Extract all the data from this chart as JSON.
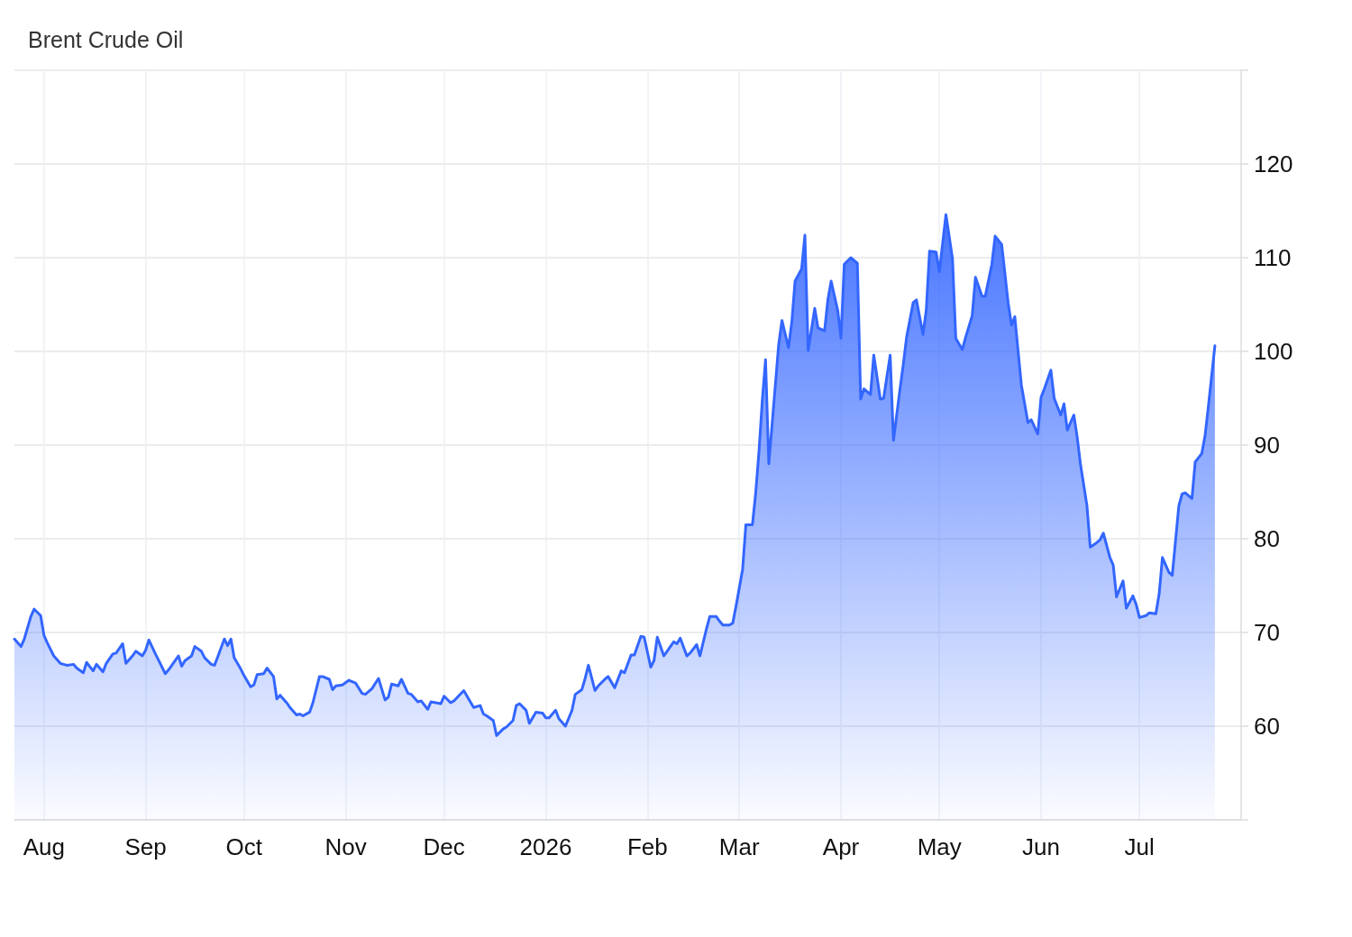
{
  "chart_data": {
    "type": "area",
    "title": "Brent Crude Oil",
    "x": [
      "2025-07-23",
      "2025-07-25",
      "2025-07-26",
      "2025-07-28",
      "2025-07-29",
      "2025-07-31",
      "2025-08-01",
      "2025-08-02",
      "2025-08-04",
      "2025-08-06",
      "2025-08-08",
      "2025-08-10",
      "2025-08-11",
      "2025-08-13",
      "2025-08-14",
      "2025-08-16",
      "2025-08-17",
      "2025-08-19",
      "2025-08-20",
      "2025-08-22",
      "2025-08-23",
      "2025-08-25",
      "2025-08-26",
      "2025-08-28",
      "2025-08-29",
      "2025-08-31",
      "2025-09-01",
      "2025-09-02",
      "2025-09-04",
      "2025-09-05",
      "2025-09-07",
      "2025-09-08",
      "2025-09-09",
      "2025-09-11",
      "2025-09-12",
      "2025-09-13",
      "2025-09-15",
      "2025-09-16",
      "2025-09-18",
      "2025-09-19",
      "2025-09-21",
      "2025-09-22",
      "2025-09-23",
      "2025-09-25",
      "2025-09-26",
      "2025-09-27",
      "2025-09-28",
      "2025-09-30",
      "2025-10-01",
      "2025-10-03",
      "2025-10-04",
      "2025-10-05",
      "2025-10-07",
      "2025-10-08",
      "2025-10-10",
      "2025-10-11",
      "2025-10-12",
      "2025-10-14",
      "2025-10-15",
      "2025-10-17",
      "2025-10-18",
      "2025-10-19",
      "2025-10-21",
      "2025-10-22",
      "2025-10-24",
      "2025-10-25",
      "2025-10-27",
      "2025-10-28",
      "2025-10-29",
      "2025-10-31",
      "2025-11-02",
      "2025-11-04",
      "2025-11-06",
      "2025-11-07",
      "2025-11-09",
      "2025-11-11",
      "2025-11-13",
      "2025-11-14",
      "2025-11-15",
      "2025-11-17",
      "2025-11-18",
      "2025-11-20",
      "2025-11-21",
      "2025-11-23",
      "2025-11-24",
      "2025-11-26",
      "2025-11-27",
      "2025-11-30",
      "2025-12-01",
      "2025-12-03",
      "2025-12-04",
      "2025-12-07",
      "2025-12-09",
      "2025-12-10",
      "2025-12-12",
      "2025-12-13",
      "2025-12-14",
      "2025-12-16",
      "2025-12-17",
      "2025-12-19",
      "2025-12-20",
      "2025-12-22",
      "2025-12-23",
      "2025-12-24",
      "2025-12-26",
      "2025-12-27",
      "2025-12-29",
      "2025-12-31",
      "2026-01-01",
      "2026-01-02",
      "2026-01-04",
      "2026-01-05",
      "2026-01-07",
      "2026-01-09",
      "2026-01-10",
      "2026-01-12",
      "2026-01-13",
      "2026-01-14",
      "2026-01-16",
      "2026-01-17",
      "2026-01-19",
      "2026-01-20",
      "2026-01-22",
      "2026-01-24",
      "2026-01-25",
      "2026-01-27",
      "2026-01-28",
      "2026-01-30",
      "2026-01-31",
      "2026-02-02",
      "2026-02-03",
      "2026-02-04",
      "2026-02-06",
      "2026-02-07",
      "2026-02-09",
      "2026-02-10",
      "2026-02-11",
      "2026-02-13",
      "2026-02-14",
      "2026-02-16",
      "2026-02-17",
      "2026-02-19",
      "2026-02-20",
      "2026-02-22",
      "2026-02-23",
      "2026-02-24",
      "2026-02-26",
      "2026-02-27",
      "2026-02-28",
      "2026-03-02",
      "2026-03-03",
      "2026-03-05",
      "2026-03-06",
      "2026-03-07",
      "2026-03-08",
      "2026-03-09",
      "2026-03-10",
      "2026-03-11",
      "2026-03-13",
      "2026-03-14",
      "2026-03-16",
      "2026-03-17",
      "2026-03-18",
      "2026-03-20",
      "2026-03-21",
      "2026-03-22",
      "2026-03-24",
      "2026-03-25",
      "2026-03-27",
      "2026-03-28",
      "2026-03-29",
      "2026-03-31",
      "2026-04-01",
      "2026-04-02",
      "2026-04-04",
      "2026-04-06",
      "2026-04-07",
      "2026-04-08",
      "2026-04-10",
      "2026-04-11",
      "2026-04-13",
      "2026-04-14",
      "2026-04-16",
      "2026-04-17",
      "2026-04-19",
      "2026-04-20",
      "2026-04-21",
      "2026-04-23",
      "2026-04-24",
      "2026-04-26",
      "2026-04-27",
      "2026-04-28",
      "2026-04-30",
      "2026-05-01",
      "2026-05-03",
      "2026-05-05",
      "2026-05-06",
      "2026-05-08",
      "2026-05-09",
      "2026-05-11",
      "2026-05-12",
      "2026-05-14",
      "2026-05-15",
      "2026-05-17",
      "2026-05-18",
      "2026-05-20",
      "2026-05-22",
      "2026-05-23",
      "2026-05-24",
      "2026-05-26",
      "2026-05-28",
      "2026-05-29",
      "2026-05-31",
      "2026-06-01",
      "2026-06-02",
      "2026-06-04",
      "2026-06-05",
      "2026-06-07",
      "2026-06-08",
      "2026-06-09",
      "2026-06-11",
      "2026-06-12",
      "2026-06-13",
      "2026-06-15",
      "2026-06-16",
      "2026-06-18",
      "2026-06-19",
      "2026-06-20",
      "2026-06-22",
      "2026-06-23",
      "2026-06-24",
      "2026-06-26",
      "2026-06-27",
      "2026-06-29",
      "2026-06-30",
      "2026-07-01",
      "2026-07-03",
      "2026-07-04",
      "2026-07-06",
      "2026-07-07",
      "2026-07-08",
      "2026-07-10",
      "2026-07-11",
      "2026-07-13",
      "2026-07-14",
      "2026-07-15",
      "2026-07-17",
      "2026-07-18",
      "2026-07-20",
      "2026-07-21",
      "2026-07-22",
      "2026-07-24"
    ],
    "values": [
      69.3,
      68.5,
      69.3,
      71.7,
      72.5,
      71.8,
      69.7,
      68.9,
      67.5,
      66.7,
      66.5,
      66.6,
      66.2,
      65.7,
      66.8,
      65.9,
      66.6,
      65.8,
      66.7,
      67.7,
      67.8,
      68.8,
      66.7,
      67.5,
      68.0,
      67.5,
      68.1,
      69.2,
      67.7,
      67.0,
      65.6,
      66.0,
      66.5,
      67.5,
      66.4,
      67.0,
      67.5,
      68.5,
      68.0,
      67.3,
      66.6,
      66.5,
      67.4,
      69.3,
      68.6,
      69.3,
      67.3,
      66.1,
      65.4,
      64.2,
      64.4,
      65.5,
      65.6,
      66.2,
      65.3,
      62.9,
      63.3,
      62.5,
      62.0,
      61.2,
      61.3,
      61.1,
      61.5,
      62.5,
      65.3,
      65.3,
      65.0,
      63.9,
      64.3,
      64.4,
      64.9,
      64.6,
      63.5,
      63.4,
      64.0,
      65.1,
      62.8,
      63.1,
      64.5,
      64.3,
      65.0,
      63.5,
      63.4,
      62.6,
      62.7,
      61.8,
      62.6,
      62.4,
      63.2,
      62.5,
      62.7,
      63.8,
      62.6,
      62.0,
      62.2,
      61.3,
      61.1,
      60.6,
      59.0,
      59.7,
      59.9,
      60.6,
      62.2,
      62.4,
      61.7,
      60.3,
      61.5,
      61.4,
      60.9,
      60.9,
      61.7,
      60.8,
      60.0,
      61.7,
      63.4,
      63.9,
      65.1,
      66.5,
      63.8,
      64.3,
      65.0,
      65.3,
      64.1,
      65.9,
      65.7,
      67.6,
      67.6,
      69.6,
      69.5,
      66.3,
      67.0,
      69.5,
      67.5,
      68.0,
      69.0,
      68.8,
      69.4,
      67.5,
      67.8,
      68.7,
      67.5,
      70.4,
      71.7,
      71.7,
      71.2,
      70.8,
      70.8,
      71.0,
      72.8,
      76.7,
      81.5,
      81.5,
      84.9,
      89.3,
      94.7,
      99.1,
      88.0,
      92.2,
      100.7,
      103.3,
      100.4,
      103.1,
      107.5,
      108.8,
      112.4,
      100.1,
      104.6,
      102.5,
      102.2,
      105.5,
      107.5,
      104.4,
      101.4,
      109.3,
      110.0,
      109.4,
      94.9,
      96.0,
      95.4,
      99.6,
      94.9,
      95.0,
      99.6,
      90.5,
      96.0,
      98.6,
      101.5,
      105.2,
      105.5,
      101.8,
      104.4,
      110.7,
      110.6,
      108.5,
      114.6,
      109.9,
      101.4,
      100.2,
      101.5,
      103.8,
      107.9,
      105.9,
      105.9,
      109.3,
      112.3,
      111.4,
      105.1,
      102.8,
      103.7,
      96.4,
      92.4,
      92.7,
      91.2,
      95.1,
      96.0,
      98.0,
      95.0,
      93.2,
      94.4,
      91.6,
      93.2,
      90.9,
      88.0,
      83.5,
      79.1,
      79.6,
      79.9,
      80.6,
      78.0,
      77.2,
      73.8,
      75.5,
      72.6,
      73.9,
      73.0,
      71.6,
      71.8,
      72.1,
      72.0,
      74.1,
      78.0,
      76.4,
      76.1,
      83.5,
      84.8,
      84.9,
      84.3,
      88.2,
      89.1,
      91.0,
      94.1,
      100.6
    ],
    "color": "#3366ff",
    "xlim": [
      "2025-07-23",
      "2026-08-01"
    ],
    "xticks": [
      {
        "value": "2025-08-01",
        "label": "Aug"
      },
      {
        "value": "2025-09-01",
        "label": "Sep"
      },
      {
        "value": "2025-10-01",
        "label": "Oct"
      },
      {
        "value": "2025-11-01",
        "label": "Nov"
      },
      {
        "value": "2025-12-01",
        "label": "Dec"
      },
      {
        "value": "2026-01-01",
        "label": "2026"
      },
      {
        "value": "2026-02-01",
        "label": "Feb"
      },
      {
        "value": "2026-03-01",
        "label": "Mar"
      },
      {
        "value": "2026-04-01",
        "label": "Apr"
      },
      {
        "value": "2026-05-01",
        "label": "May"
      },
      {
        "value": "2026-06-01",
        "label": "Jun"
      },
      {
        "value": "2026-07-01",
        "label": "Jul"
      }
    ],
    "ylim": [
      50,
      130
    ],
    "yticks": [
      {
        "value": 50,
        "label": null
      },
      60,
      70,
      80,
      90,
      100,
      110,
      120,
      {
        "value": 130,
        "label": null
      }
    ],
    "grid": true
  }
}
